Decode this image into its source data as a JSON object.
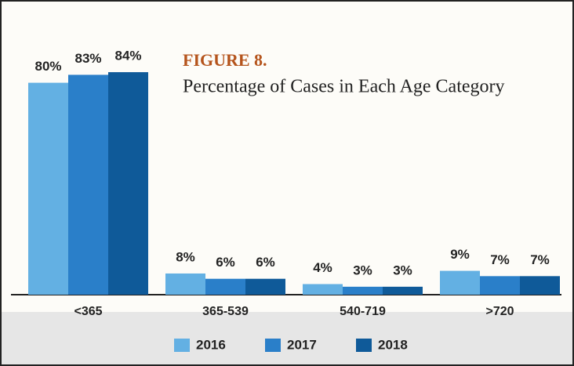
{
  "chart_data": {
    "type": "bar",
    "title": "FIGURE 8.",
    "subtitle": "Percentage of Cases in Each Age Category",
    "categories": [
      "<365",
      "365-539",
      "540-719",
      ">720"
    ],
    "series": [
      {
        "name": "2016",
        "color": "#63b0e3",
        "values": [
          80,
          8,
          4,
          9
        ],
        "value_labels": [
          "80%",
          "8%",
          "4%",
          "9%"
        ]
      },
      {
        "name": "2017",
        "color": "#2a7fc9",
        "values": [
          83,
          6,
          3,
          7
        ],
        "value_labels": [
          "83%",
          "6%",
          "3%",
          "7%"
        ]
      },
      {
        "name": "2018",
        "color": "#0f5a99",
        "values": [
          84,
          6,
          3,
          7
        ],
        "value_labels": [
          "84%",
          "6%",
          "3%",
          "7%"
        ]
      }
    ],
    "legend": "bottom"
  }
}
